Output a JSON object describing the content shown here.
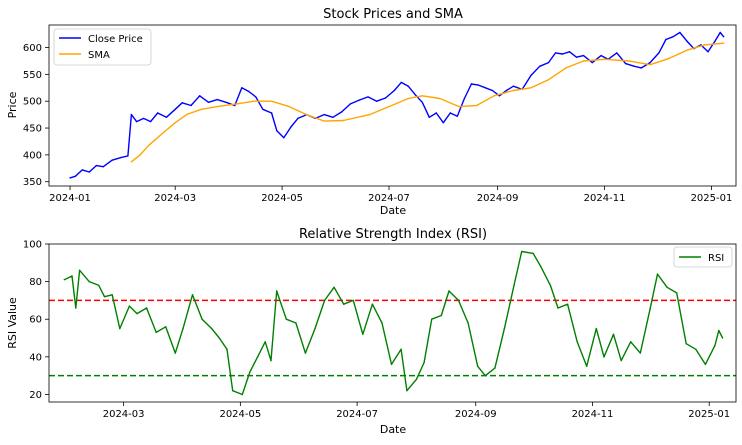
{
  "chart_data": [
    {
      "type": "line",
      "title": "Stock Prices and SMA",
      "xlabel": "Date",
      "ylabel": "Price",
      "xlim": [
        "2023-12-20",
        "2025-01-15"
      ],
      "ylim": [
        342,
        642
      ],
      "x_ticks": [
        "2024-01",
        "2024-03",
        "2024-05",
        "2024-07",
        "2024-09",
        "2024-11",
        "2025-01"
      ],
      "y_ticks": [
        350,
        400,
        450,
        500,
        550,
        600
      ],
      "grid": false,
      "legend": "top-left",
      "series": [
        {
          "name": "Close Price",
          "color": "#0000ff",
          "points": [
            [
              "2024-01-01",
              357
            ],
            [
              "2024-01-04",
              360
            ],
            [
              "2024-01-08",
              372
            ],
            [
              "2024-01-12",
              368
            ],
            [
              "2024-01-16",
              380
            ],
            [
              "2024-01-20",
              378
            ],
            [
              "2024-01-25",
              390
            ],
            [
              "2024-01-30",
              395
            ],
            [
              "2024-02-03",
              398
            ],
            [
              "2024-02-05",
              475
            ],
            [
              "2024-02-08",
              462
            ],
            [
              "2024-02-12",
              468
            ],
            [
              "2024-02-16",
              462
            ],
            [
              "2024-02-20",
              478
            ],
            [
              "2024-02-25",
              470
            ],
            [
              "2024-03-01",
              485
            ],
            [
              "2024-03-05",
              497
            ],
            [
              "2024-03-10",
              492
            ],
            [
              "2024-03-15",
              510
            ],
            [
              "2024-03-20",
              498
            ],
            [
              "2024-03-25",
              503
            ],
            [
              "2024-03-30",
              498
            ],
            [
              "2024-04-04",
              492
            ],
            [
              "2024-04-08",
              525
            ],
            [
              "2024-04-12",
              518
            ],
            [
              "2024-04-16",
              508
            ],
            [
              "2024-04-20",
              485
            ],
            [
              "2024-04-25",
              478
            ],
            [
              "2024-04-28",
              445
            ],
            [
              "2024-05-02",
              432
            ],
            [
              "2024-05-06",
              452
            ],
            [
              "2024-05-10",
              468
            ],
            [
              "2024-05-15",
              475
            ],
            [
              "2024-05-20",
              468
            ],
            [
              "2024-05-25",
              475
            ],
            [
              "2024-05-30",
              470
            ],
            [
              "2024-06-04",
              480
            ],
            [
              "2024-06-09",
              495
            ],
            [
              "2024-06-14",
              502
            ],
            [
              "2024-06-19",
              508
            ],
            [
              "2024-06-24",
              500
            ],
            [
              "2024-06-29",
              506
            ],
            [
              "2024-07-04",
              520
            ],
            [
              "2024-07-08",
              535
            ],
            [
              "2024-07-12",
              528
            ],
            [
              "2024-07-16",
              512
            ],
            [
              "2024-07-20",
              498
            ],
            [
              "2024-07-24",
              470
            ],
            [
              "2024-07-28",
              478
            ],
            [
              "2024-08-01",
              460
            ],
            [
              "2024-08-05",
              478
            ],
            [
              "2024-08-09",
              472
            ],
            [
              "2024-08-13",
              505
            ],
            [
              "2024-08-17",
              532
            ],
            [
              "2024-08-21",
              530
            ],
            [
              "2024-08-25",
              525
            ],
            [
              "2024-08-29",
              520
            ],
            [
              "2024-09-02",
              510
            ],
            [
              "2024-09-06",
              520
            ],
            [
              "2024-09-10",
              528
            ],
            [
              "2024-09-15",
              522
            ],
            [
              "2024-09-20",
              548
            ],
            [
              "2024-09-25",
              565
            ],
            [
              "2024-09-30",
              572
            ],
            [
              "2024-10-04",
              590
            ],
            [
              "2024-10-08",
              588
            ],
            [
              "2024-10-12",
              592
            ],
            [
              "2024-10-16",
              582
            ],
            [
              "2024-10-20",
              585
            ],
            [
              "2024-10-25",
              572
            ],
            [
              "2024-10-30",
              585
            ],
            [
              "2024-11-03",
              578
            ],
            [
              "2024-11-08",
              590
            ],
            [
              "2024-11-13",
              570
            ],
            [
              "2024-11-18",
              565
            ],
            [
              "2024-11-22",
              562
            ],
            [
              "2024-11-27",
              572
            ],
            [
              "2024-12-02",
              590
            ],
            [
              "2024-12-06",
              615
            ],
            [
              "2024-12-10",
              620
            ],
            [
              "2024-12-14",
              628
            ],
            [
              "2024-12-18",
              612
            ],
            [
              "2024-12-22",
              598
            ],
            [
              "2024-12-26",
              605
            ],
            [
              "2024-12-30",
              592
            ],
            [
              "2025-01-03",
              612
            ],
            [
              "2025-01-06",
              628
            ],
            [
              "2025-01-08",
              620
            ]
          ]
        },
        {
          "name": "SMA",
          "color": "#ffa500",
          "points": [
            [
              "2024-02-05",
              387
            ],
            [
              "2024-02-10",
              400
            ],
            [
              "2024-02-15",
              418
            ],
            [
              "2024-02-22",
              438
            ],
            [
              "2024-03-01",
              460
            ],
            [
              "2024-03-08",
              476
            ],
            [
              "2024-03-16",
              485
            ],
            [
              "2024-03-25",
              490
            ],
            [
              "2024-04-05",
              495
            ],
            [
              "2024-04-15",
              500
            ],
            [
              "2024-04-25",
              500
            ],
            [
              "2024-05-05",
              490
            ],
            [
              "2024-05-15",
              475
            ],
            [
              "2024-05-25",
              463
            ],
            [
              "2024-06-05",
              464
            ],
            [
              "2024-06-20",
              475
            ],
            [
              "2024-07-01",
              490
            ],
            [
              "2024-07-12",
              505
            ],
            [
              "2024-07-20",
              510
            ],
            [
              "2024-07-30",
              505
            ],
            [
              "2024-08-10",
              490
            ],
            [
              "2024-08-20",
              492
            ],
            [
              "2024-08-30",
              510
            ],
            [
              "2024-09-10",
              520
            ],
            [
              "2024-09-20",
              525
            ],
            [
              "2024-09-30",
              540
            ],
            [
              "2024-10-10",
              562
            ],
            [
              "2024-10-20",
              575
            ],
            [
              "2024-11-01",
              578
            ],
            [
              "2024-11-15",
              575
            ],
            [
              "2024-11-27",
              568
            ],
            [
              "2024-12-08",
              580
            ],
            [
              "2024-12-18",
              595
            ],
            [
              "2024-12-28",
              605
            ],
            [
              "2025-01-08",
              608
            ]
          ]
        }
      ]
    },
    {
      "type": "line",
      "title": "Relative Strength Index (RSI)",
      "xlabel": "Date",
      "ylabel": "RSI Value",
      "xlim": [
        "2024-01-22",
        "2025-01-15"
      ],
      "ylim": [
        16,
        100
      ],
      "x_ticks": [
        "2024-03",
        "2024-05",
        "2024-07",
        "2024-09",
        "2024-11",
        "2025-01"
      ],
      "y_ticks": [
        20,
        40,
        60,
        80,
        100
      ],
      "grid": false,
      "legend": "top-right",
      "thresholds": [
        {
          "value": 70,
          "color": "#ff0000"
        },
        {
          "value": 30,
          "color": "#008000"
        }
      ],
      "series": [
        {
          "name": "RSI",
          "color": "#008000",
          "points": [
            [
              "2024-01-30",
              81
            ],
            [
              "2024-02-03",
              83
            ],
            [
              "2024-02-05",
              66
            ],
            [
              "2024-02-07",
              86
            ],
            [
              "2024-02-12",
              80
            ],
            [
              "2024-02-17",
              78
            ],
            [
              "2024-02-20",
              72
            ],
            [
              "2024-02-24",
              73
            ],
            [
              "2024-02-28",
              55
            ],
            [
              "2024-03-04",
              67
            ],
            [
              "2024-03-08",
              63
            ],
            [
              "2024-03-13",
              66
            ],
            [
              "2024-03-18",
              53
            ],
            [
              "2024-03-23",
              56
            ],
            [
              "2024-03-28",
              42
            ],
            [
              "2024-04-01",
              55
            ],
            [
              "2024-04-06",
              73
            ],
            [
              "2024-04-11",
              60
            ],
            [
              "2024-04-16",
              55
            ],
            [
              "2024-04-20",
              50
            ],
            [
              "2024-04-24",
              44
            ],
            [
              "2024-04-27",
              22
            ],
            [
              "2024-05-02",
              20
            ],
            [
              "2024-05-06",
              32
            ],
            [
              "2024-05-10",
              40
            ],
            [
              "2024-05-14",
              48
            ],
            [
              "2024-05-17",
              38
            ],
            [
              "2024-05-20",
              75
            ],
            [
              "2024-05-25",
              60
            ],
            [
              "2024-05-30",
              58
            ],
            [
              "2024-06-04",
              42
            ],
            [
              "2024-06-09",
              55
            ],
            [
              "2024-06-14",
              70
            ],
            [
              "2024-06-19",
              77
            ],
            [
              "2024-06-24",
              68
            ],
            [
              "2024-06-29",
              70
            ],
            [
              "2024-07-04",
              52
            ],
            [
              "2024-07-09",
              68
            ],
            [
              "2024-07-14",
              58
            ],
            [
              "2024-07-19",
              36
            ],
            [
              "2024-07-24",
              44
            ],
            [
              "2024-07-27",
              22
            ],
            [
              "2024-08-01",
              28
            ],
            [
              "2024-08-05",
              37
            ],
            [
              "2024-08-09",
              60
            ],
            [
              "2024-08-14",
              62
            ],
            [
              "2024-08-18",
              75
            ],
            [
              "2024-08-23",
              70
            ],
            [
              "2024-08-28",
              58
            ],
            [
              "2024-09-02",
              35
            ],
            [
              "2024-09-06",
              30
            ],
            [
              "2024-09-11",
              34
            ],
            [
              "2024-09-16",
              55
            ],
            [
              "2024-09-21",
              78
            ],
            [
              "2024-09-25",
              96
            ],
            [
              "2024-10-01",
              95
            ],
            [
              "2024-10-05",
              88
            ],
            [
              "2024-10-10",
              78
            ],
            [
              "2024-10-14",
              66
            ],
            [
              "2024-10-19",
              68
            ],
            [
              "2024-10-24",
              48
            ],
            [
              "2024-10-29",
              35
            ],
            [
              "2024-11-03",
              55
            ],
            [
              "2024-11-07",
              40
            ],
            [
              "2024-11-12",
              52
            ],
            [
              "2024-11-16",
              38
            ],
            [
              "2024-11-21",
              48
            ],
            [
              "2024-11-26",
              42
            ],
            [
              "2024-12-01",
              65
            ],
            [
              "2024-12-05",
              84
            ],
            [
              "2024-12-10",
              77
            ],
            [
              "2024-12-15",
              74
            ],
            [
              "2024-12-20",
              47
            ],
            [
              "2024-12-25",
              44
            ],
            [
              "2024-12-30",
              36
            ],
            [
              "2025-01-04",
              46
            ],
            [
              "2025-01-06",
              54
            ],
            [
              "2025-01-08",
              50
            ]
          ]
        }
      ]
    }
  ]
}
